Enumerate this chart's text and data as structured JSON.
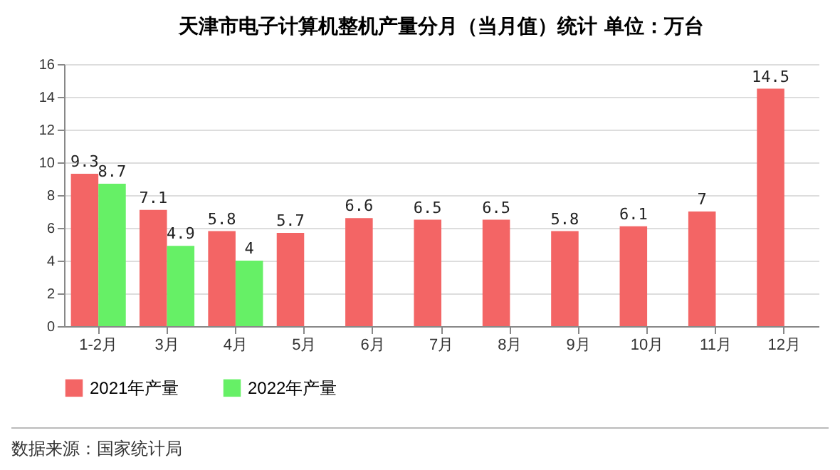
{
  "chart_data": {
    "type": "bar",
    "title": "天津市电子计算机整机产量分月（当月值）统计 单位：万台",
    "categories": [
      "1-2月",
      "3月",
      "4月",
      "5月",
      "6月",
      "7月",
      "8月",
      "9月",
      "10月",
      "11月",
      "12月"
    ],
    "series": [
      {
        "name": "2021年产量",
        "color": "#f36565",
        "values": [
          9.3,
          7.1,
          5.8,
          5.7,
          6.6,
          6.5,
          6.5,
          5.8,
          6.1,
          7,
          14.5
        ]
      },
      {
        "name": "2022年产量",
        "color": "#66f066",
        "values": [
          8.7,
          4.9,
          4,
          null,
          null,
          null,
          null,
          null,
          null,
          null,
          null
        ]
      }
    ],
    "ylim": [
      0,
      16
    ],
    "yticks": [
      0,
      2,
      4,
      6,
      8,
      10,
      12,
      14,
      16
    ],
    "grid": "y",
    "legend": "bottom",
    "data_labels": true,
    "annotations": [
      "数据来源：国家统计局"
    ]
  }
}
